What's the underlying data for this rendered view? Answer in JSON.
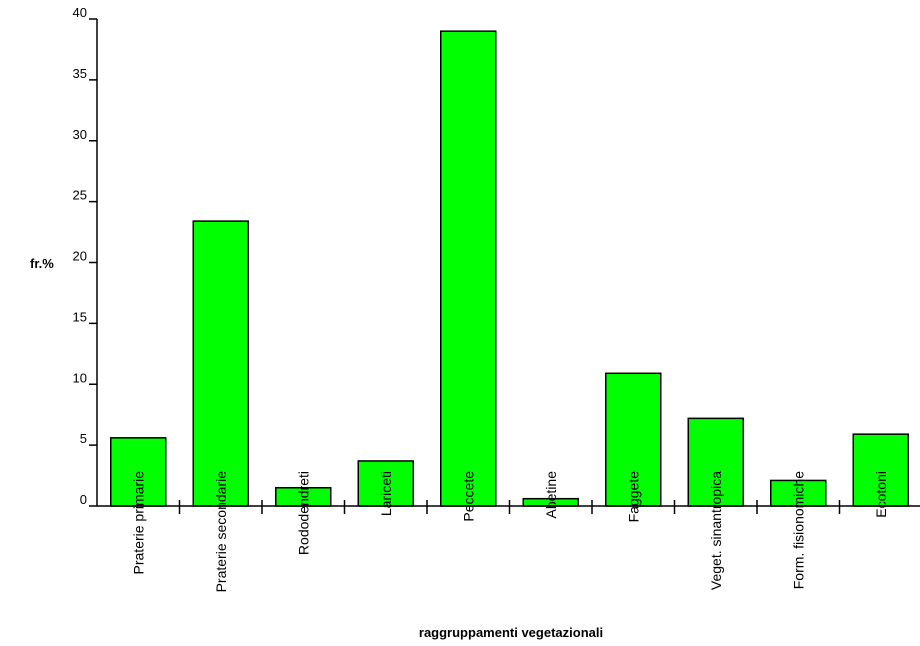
{
  "chart_data": {
    "type": "bar",
    "title": "",
    "xlabel": "raggruppamenti vegetazionali",
    "ylabel": "fr.%",
    "ylim": [
      0,
      40
    ],
    "yticks": [
      0,
      5,
      10,
      15,
      20,
      25,
      30,
      35,
      40
    ],
    "grid": false,
    "categories": [
      "Praterie primarie",
      "Praterie secondarie",
      "Rododendreti",
      "Lariceti",
      "Peccete",
      "Abetine",
      "Faggete",
      "Veget. sinantropica",
      "Form. fisionomiche",
      "Ecotoni"
    ],
    "values": [
      5.6,
      23.4,
      1.5,
      3.7,
      39.0,
      0.6,
      10.9,
      7.2,
      2.1,
      5.9
    ],
    "bar_color": "#00ff00",
    "edge_color": "#000000"
  }
}
